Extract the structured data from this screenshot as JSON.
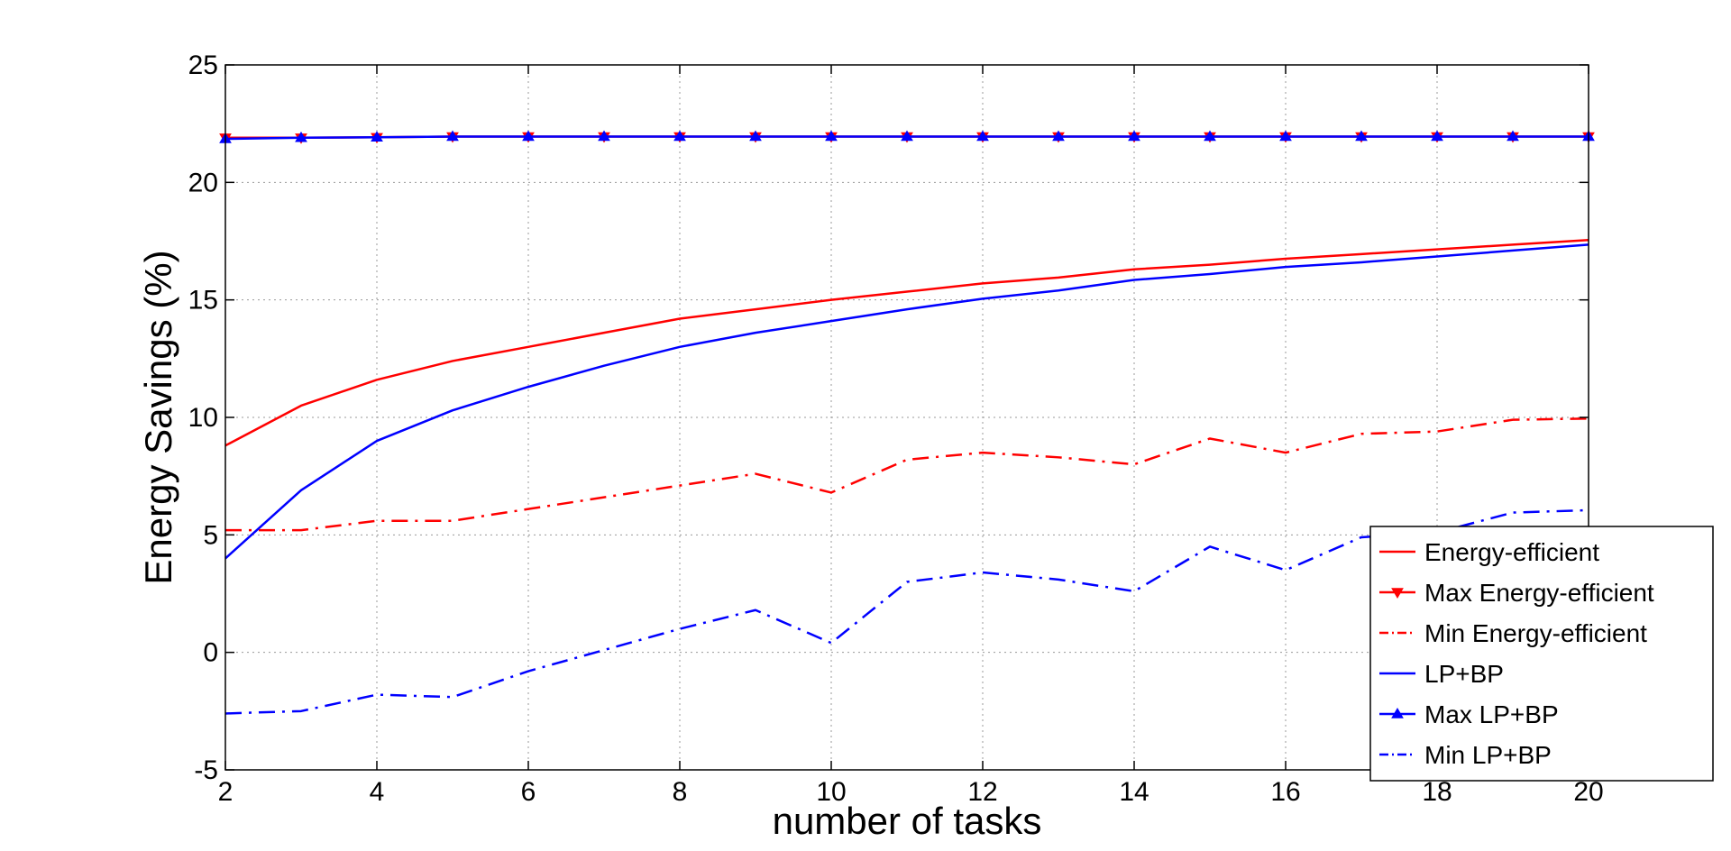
{
  "chart_data": {
    "type": "line",
    "title": "",
    "xlabel": "number of tasks",
    "ylabel": "Energy Savings (%)",
    "xlim": [
      2,
      20
    ],
    "ylim": [
      -5,
      25
    ],
    "xticks": [
      "2",
      "4",
      "6",
      "8",
      "10",
      "12",
      "14",
      "16",
      "18",
      "20"
    ],
    "yticks": [
      "-5",
      "0",
      "5",
      "10",
      "15",
      "20",
      "25"
    ],
    "grid": true,
    "legend_position": "bottom-right",
    "x": [
      2,
      3,
      4,
      5,
      6,
      7,
      8,
      9,
      10,
      11,
      12,
      13,
      14,
      15,
      16,
      17,
      18,
      19,
      20
    ],
    "series": [
      {
        "name": "Energy-efficient",
        "color": "#ff0000",
        "style": "solid",
        "marker": "none",
        "values": [
          8.8,
          10.5,
          11.6,
          12.4,
          13.0,
          13.6,
          14.2,
          14.6,
          15.0,
          15.35,
          15.7,
          15.95,
          16.3,
          16.5,
          16.75,
          16.95,
          17.15,
          17.35,
          17.55
        ]
      },
      {
        "name": "Max Energy-efficient",
        "color": "#ff0000",
        "style": "solid",
        "marker": "triangle-down",
        "values": [
          21.9,
          21.9,
          21.92,
          21.95,
          21.95,
          21.95,
          21.95,
          21.95,
          21.95,
          21.95,
          21.95,
          21.95,
          21.95,
          21.95,
          21.95,
          21.95,
          21.95,
          21.95,
          21.95
        ]
      },
      {
        "name": "Min Energy-efficient",
        "color": "#ff0000",
        "style": "dashdot",
        "marker": "none",
        "values": [
          5.2,
          5.2,
          5.6,
          5.6,
          6.1,
          6.6,
          7.1,
          7.6,
          6.8,
          8.2,
          8.5,
          8.3,
          8.0,
          9.1,
          8.5,
          9.3,
          9.4,
          9.9,
          9.95
        ]
      },
      {
        "name": "LP+BP",
        "color": "#0000ff",
        "style": "solid",
        "marker": "none",
        "values": [
          4.0,
          6.9,
          9.0,
          10.3,
          11.3,
          12.2,
          13.0,
          13.6,
          14.1,
          14.6,
          15.05,
          15.4,
          15.85,
          16.1,
          16.4,
          16.6,
          16.85,
          17.1,
          17.35
        ]
      },
      {
        "name": "Max LP+BP",
        "color": "#0000ff",
        "style": "solid",
        "marker": "triangle-up",
        "values": [
          21.85,
          21.9,
          21.92,
          21.95,
          21.95,
          21.95,
          21.95,
          21.95,
          21.95,
          21.95,
          21.95,
          21.95,
          21.95,
          21.95,
          21.95,
          21.95,
          21.95,
          21.95,
          21.95
        ]
      },
      {
        "name": "Min LP+BP",
        "color": "#0000ff",
        "style": "dashdot",
        "marker": "none",
        "values": [
          -2.6,
          -2.5,
          -1.8,
          -1.9,
          -0.8,
          0.1,
          1.0,
          1.8,
          0.4,
          3.0,
          3.4,
          3.1,
          2.6,
          4.5,
          3.5,
          4.9,
          5.1,
          5.95,
          6.05
        ]
      }
    ]
  }
}
